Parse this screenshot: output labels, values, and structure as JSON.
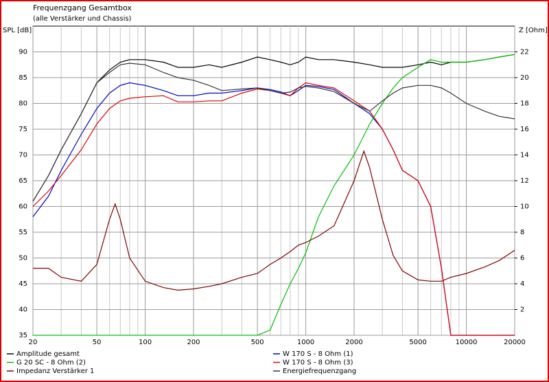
{
  "chart_data": {
    "type": "line",
    "title": "Frequenzgang Gesamtbox",
    "subtitle": "(alle Verstärker und Chassis)",
    "y_label": "SPL [dB]",
    "y2_label": "Z [Ohm]",
    "x_scale": "log",
    "grid": true,
    "legend": "bottom",
    "xlim": [
      20,
      20000
    ],
    "xticks": [
      20,
      50,
      100,
      200,
      500,
      1000,
      2000,
      5000,
      10000,
      20000
    ],
    "xminorticks": [
      30,
      40,
      60,
      70,
      80,
      90,
      300,
      400,
      600,
      700,
      800,
      900,
      3000,
      4000,
      6000,
      7000,
      8000,
      9000
    ],
    "ylim": [
      35,
      95
    ],
    "yticks": [
      35,
      40,
      45,
      50,
      55,
      60,
      65,
      70,
      75,
      80,
      85,
      90
    ],
    "y2lim": [
      0,
      24
    ],
    "y2ticks": [
      2,
      4,
      6,
      8,
      10,
      12,
      14,
      16,
      18,
      20,
      22
    ],
    "x": [
      20,
      25,
      30,
      40,
      50,
      60,
      70,
      80,
      100,
      130,
      160,
      200,
      250,
      300,
      400,
      500,
      600,
      700,
      800,
      900,
      1000,
      1200,
      1500,
      2000,
      2500,
      3000,
      3500,
      4000,
      5000,
      6000,
      7000,
      8000,
      10000,
      13000,
      16000,
      20000
    ],
    "series": [
      {
        "name": "Amplitude gesamt",
        "color": "#000000",
        "values": [
          61,
          66,
          71,
          78,
          84,
          86.5,
          88,
          88.5,
          88.5,
          88,
          87,
          87,
          87.5,
          87,
          88,
          89,
          88.5,
          88,
          87.5,
          88,
          89,
          88.5,
          88.5,
          88,
          87.5,
          87,
          87,
          87,
          87.5,
          88,
          87.5,
          88,
          88,
          88.5,
          89,
          89.5
        ]
      },
      {
        "name": "W 170 S - 8 Ohm (1)",
        "color": "#0000c8",
        "values": [
          58,
          62,
          67,
          74,
          79,
          82,
          83.5,
          84,
          83.5,
          82.5,
          81.5,
          81.5,
          82,
          82,
          82.5,
          83,
          82.7,
          82.2,
          81.5,
          82.5,
          83.5,
          83.3,
          82.7,
          80,
          78,
          75,
          71,
          67,
          65,
          60,
          48,
          35,
          35,
          35,
          35,
          35
        ]
      },
      {
        "name": "G 20 SC - 8 Ohm (2)",
        "color": "#00c000",
        "values": [
          35,
          35,
          35,
          35,
          35,
          35,
          35,
          35,
          35,
          35,
          35,
          35,
          35,
          35,
          35,
          35,
          36,
          41,
          45,
          48,
          51,
          58,
          64,
          70,
          76,
          80,
          83,
          85,
          87,
          88.5,
          88,
          88,
          88,
          88.5,
          89,
          89.5
        ]
      },
      {
        "name": "W 170 S - 8 Ohm (3)",
        "color": "#e00000",
        "values": [
          60,
          63,
          66,
          71,
          76,
          79,
          80.5,
          81,
          81.3,
          81.5,
          80.3,
          80.3,
          80.5,
          80.5,
          82,
          82.8,
          82.5,
          82,
          81.5,
          83,
          84,
          83.5,
          83,
          80.5,
          78.5,
          75,
          71,
          67,
          65,
          60,
          48,
          35,
          35,
          35,
          35,
          35
        ]
      },
      {
        "name": "Impedanz Verstärker 1",
        "color": "#800000",
        "axis": "y2",
        "x": [
          20,
          25,
          30,
          40,
          50,
          60,
          65,
          70,
          80,
          100,
          130,
          160,
          200,
          250,
          300,
          400,
          500,
          600,
          700,
          800,
          900,
          1000,
          1200,
          1500,
          2000,
          2300,
          2500,
          3000,
          3500,
          4000,
          5000,
          6000,
          7000,
          8000,
          10000,
          13000,
          16000,
          20000
        ],
        "values": [
          5.2,
          5.2,
          4.5,
          4.2,
          5.5,
          9,
          10.2,
          9,
          6,
          4.2,
          3.7,
          3.5,
          3.6,
          3.8,
          4.0,
          4.5,
          4.8,
          5.5,
          6,
          6.5,
          7,
          7.2,
          7.7,
          8.5,
          12,
          14.3,
          13,
          9,
          6.2,
          5,
          4.3,
          4.2,
          4.2,
          4.5,
          4.8,
          5.3,
          5.8,
          6.6
        ]
      },
      {
        "name": "Energiefrequenzgang",
        "color": "#333333",
        "values": [
          61,
          66,
          71,
          78,
          84,
          86,
          87.5,
          87.8,
          87.5,
          86,
          85,
          84.5,
          83.5,
          82.5,
          82.8,
          83,
          82.5,
          82,
          82.2,
          83,
          83.3,
          83,
          82.3,
          80,
          78.5,
          80.5,
          82,
          83,
          83.5,
          83.5,
          83,
          82,
          80,
          78.5,
          77.5,
          77
        ]
      }
    ]
  }
}
